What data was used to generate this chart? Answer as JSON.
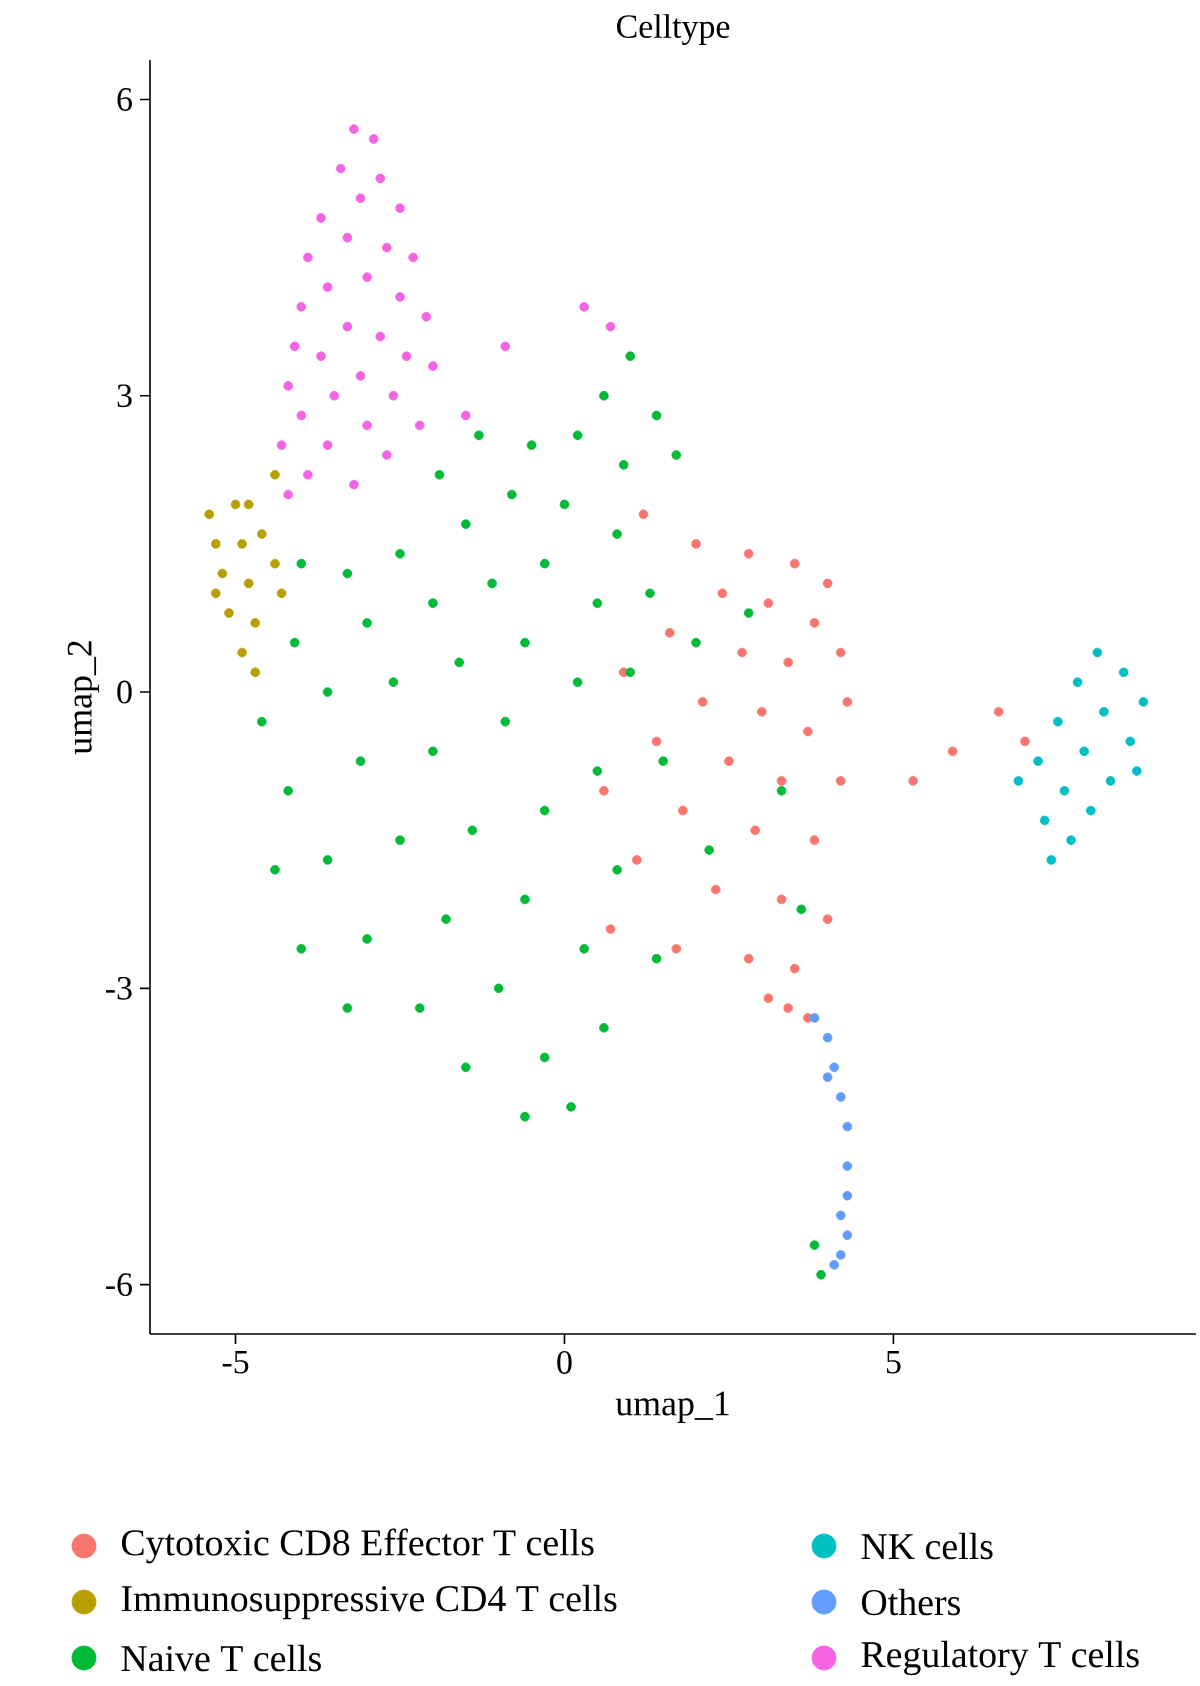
{
  "chart_data": {
    "type": "scatter",
    "title": "Celltype",
    "xlabel": "umap_1",
    "ylabel": "umap_2",
    "xlim": [
      -6.3,
      9.6
    ],
    "ylim": [
      -6.5,
      6.4
    ],
    "xticks": [
      -5,
      0,
      5
    ],
    "yticks": [
      -6,
      -3,
      0,
      3,
      6
    ],
    "grid": false,
    "legend": "bottom",
    "marker": "circle",
    "series": [
      {
        "name": "Cytotoxic CD8 Effector T cells",
        "color": "#f8766d",
        "x": [
          1.2,
          2.0,
          2.8,
          3.5,
          4.0,
          2.4,
          3.1,
          3.8,
          4.2,
          1.6,
          2.7,
          3.4,
          4.3,
          0.9,
          2.1,
          3.0,
          3.7,
          1.4,
          2.5,
          3.3,
          4.2,
          0.6,
          1.8,
          2.9,
          3.8,
          1.1,
          2.3,
          3.3,
          4.0,
          0.7,
          1.7,
          2.8,
          3.5,
          3.1,
          3.7,
          3.4,
          6.6,
          7.0,
          5.3,
          5.9
        ],
        "values": [
          1.8,
          1.5,
          1.4,
          1.3,
          1.1,
          1.0,
          0.9,
          0.7,
          0.4,
          0.6,
          0.4,
          0.3,
          -0.1,
          0.2,
          -0.1,
          -0.2,
          -0.4,
          -0.5,
          -0.7,
          -0.9,
          -0.9,
          -1.0,
          -1.2,
          -1.4,
          -1.5,
          -1.7,
          -2.0,
          -2.1,
          -2.3,
          -2.4,
          -2.6,
          -2.7,
          -2.8,
          -3.1,
          -3.3,
          -3.2,
          -0.2,
          -0.5,
          -0.9,
          -0.6
        ]
      },
      {
        "name": "Immunosuppressive CD4 T cells",
        "color": "#b79f00",
        "x": [
          -5.4,
          -5.0,
          -5.3,
          -4.9,
          -4.6,
          -5.2,
          -4.8,
          -4.4,
          -5.1,
          -4.7,
          -4.9,
          -5.3,
          -4.3,
          -4.7,
          -4.8,
          -4.4
        ],
        "values": [
          1.8,
          1.9,
          1.5,
          1.5,
          1.6,
          1.2,
          1.1,
          1.3,
          0.8,
          0.7,
          0.4,
          1.0,
          1.0,
          0.2,
          1.9,
          2.2
        ]
      },
      {
        "name": "Naive T cells",
        "color": "#00ba38",
        "x": [
          1.0,
          0.6,
          1.4,
          1.7,
          0.9,
          0.2,
          -0.5,
          -1.3,
          -1.9,
          -0.8,
          0.0,
          0.8,
          -1.5,
          -2.5,
          -3.3,
          -4.0,
          -0.3,
          -1.1,
          -2.0,
          -3.0,
          -4.1,
          0.5,
          1.3,
          -0.6,
          -1.6,
          -2.6,
          -3.6,
          -4.6,
          0.2,
          1.0,
          2.0,
          -0.9,
          -2.0,
          -3.1,
          -4.2,
          0.5,
          1.5,
          -0.3,
          -1.4,
          -2.5,
          -3.6,
          -4.4,
          0.8,
          2.2,
          -0.6,
          -1.8,
          -3.0,
          -4.0,
          0.3,
          1.4,
          -1.0,
          -2.2,
          -3.3,
          0.6,
          -0.3,
          -1.5,
          0.1,
          -0.6,
          3.3,
          2.8,
          3.6,
          3.9,
          3.8
        ],
        "values": [
          3.4,
          3.0,
          2.8,
          2.4,
          2.3,
          2.6,
          2.5,
          2.6,
          2.2,
          2.0,
          1.9,
          1.6,
          1.7,
          1.4,
          1.2,
          1.3,
          1.3,
          1.1,
          0.9,
          0.7,
          0.5,
          0.9,
          1.0,
          0.5,
          0.3,
          0.1,
          0.0,
          -0.3,
          0.1,
          0.2,
          0.5,
          -0.3,
          -0.6,
          -0.7,
          -1.0,
          -0.8,
          -0.7,
          -1.2,
          -1.4,
          -1.5,
          -1.7,
          -1.8,
          -1.8,
          -1.6,
          -2.1,
          -2.3,
          -2.5,
          -2.6,
          -2.6,
          -2.7,
          -3.0,
          -3.2,
          -3.2,
          -3.4,
          -3.7,
          -3.8,
          -4.2,
          -4.3,
          -1.0,
          0.8,
          -2.2,
          -5.9,
          -5.6
        ]
      },
      {
        "name": "NK cells",
        "color": "#00bfc4",
        "x": [
          8.1,
          8.5,
          7.8,
          8.8,
          8.2,
          7.5,
          8.6,
          7.9,
          7.2,
          8.3,
          7.6,
          6.9,
          8.0,
          7.3,
          7.7,
          8.7,
          7.4
        ],
        "values": [
          0.4,
          0.2,
          0.1,
          -0.1,
          -0.2,
          -0.3,
          -0.5,
          -0.6,
          -0.7,
          -0.9,
          -1.0,
          -0.9,
          -1.2,
          -1.3,
          -1.5,
          -0.8,
          -1.7
        ]
      },
      {
        "name": "Others",
        "color": "#619cff",
        "x": [
          3.8,
          4.0,
          4.1,
          4.2,
          4.3,
          4.3,
          4.3,
          4.2,
          4.3,
          4.2,
          4.1,
          4.0
        ],
        "values": [
          -3.3,
          -3.5,
          -3.8,
          -4.1,
          -4.4,
          -4.8,
          -5.1,
          -5.3,
          -5.5,
          -5.7,
          -5.8,
          -3.9
        ]
      },
      {
        "name": "Regulatory T cells",
        "color": "#f564e3",
        "x": [
          -3.2,
          -2.9,
          -3.4,
          -2.8,
          -3.1,
          -3.7,
          -2.5,
          -3.3,
          -2.7,
          -3.9,
          -2.3,
          -3.0,
          -3.6,
          -2.5,
          -4.0,
          -2.1,
          -3.3,
          -2.8,
          -4.1,
          -3.7,
          -2.4,
          -2.0,
          -3.1,
          -4.2,
          -3.5,
          -2.6,
          -4.0,
          -3.0,
          -2.2,
          -4.3,
          -3.6,
          -2.7,
          -3.9,
          -3.2,
          -4.2,
          -1.5,
          0.3,
          0.7,
          -0.9
        ],
        "values": [
          5.7,
          5.6,
          5.3,
          5.2,
          5.0,
          4.8,
          4.9,
          4.6,
          4.5,
          4.4,
          4.4,
          4.2,
          4.1,
          4.0,
          3.9,
          3.8,
          3.7,
          3.6,
          3.5,
          3.4,
          3.4,
          3.3,
          3.2,
          3.1,
          3.0,
          3.0,
          2.8,
          2.7,
          2.7,
          2.5,
          2.5,
          2.4,
          2.2,
          2.1,
          2.0,
          2.8,
          3.9,
          3.7,
          3.5
        ]
      }
    ]
  }
}
